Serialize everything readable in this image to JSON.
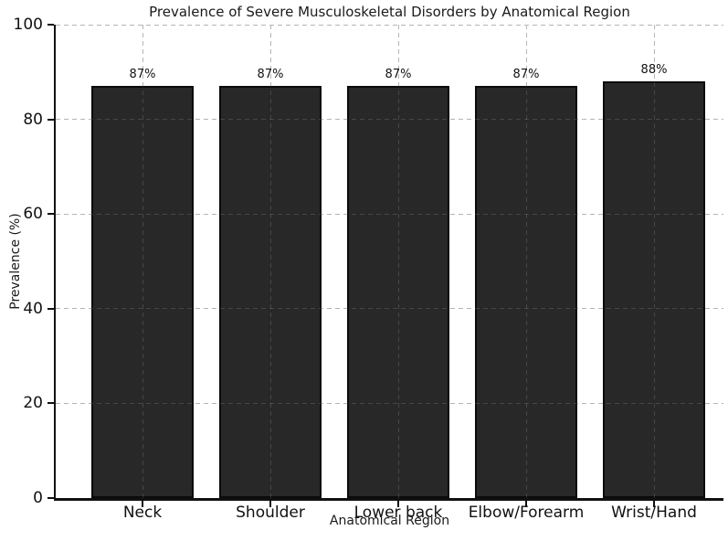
{
  "chart_data": {
    "type": "bar",
    "title": "Prevalence of Severe Musculoskeletal Disorders by Anatomical Region",
    "xlabel": "Anatomical Region",
    "ylabel": "Prevalence (%)",
    "categories": [
      "Neck",
      "Shoulder",
      "Lower back",
      "Elbow/Forearm",
      "Wrist/Hand"
    ],
    "values": [
      87,
      87,
      87,
      87,
      88
    ],
    "bar_labels": [
      "87%",
      "87%",
      "87%",
      "87%",
      "88%"
    ],
    "ylim": [
      0,
      100
    ],
    "yticks": [
      0,
      20,
      40,
      60,
      80,
      100
    ],
    "ytick_labels": [
      "0",
      "20",
      "40",
      "60",
      "80",
      "100"
    ],
    "grid": "dashed",
    "legend": "none",
    "colors": {
      "bar_fill": "#282828",
      "bar_edge": "#0b0b0b",
      "grid": "#a8a8a8",
      "grid_over_bar": "rgba(255,255,255,0.14)",
      "spine": "#111111",
      "text": "#111111",
      "background": "#ffffff"
    }
  }
}
